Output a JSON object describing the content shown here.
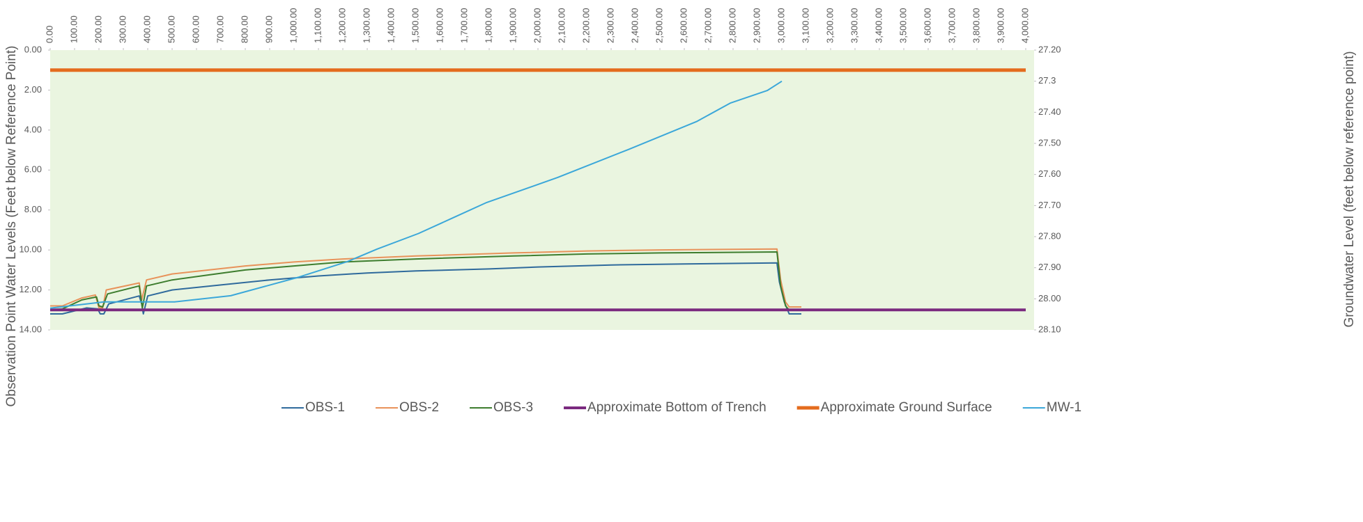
{
  "chart_data": {
    "type": "line",
    "y_reversed": true,
    "y2_reversed": true,
    "xlim": [
      0,
      4000
    ],
    "ylim": [
      0,
      14
    ],
    "y2lim": [
      27.2,
      28.1
    ],
    "ylabel": "Observation Point Water Levels (Feet below Reference Point)",
    "y2label": "Groundwater Level (feet below reference point)",
    "plot_background": "#eaf5e0",
    "legend": "bottom",
    "xticks": [
      {
        "value": 0,
        "label": "0.00"
      },
      {
        "value": 100,
        "label": "100.00"
      },
      {
        "value": 200,
        "label": "200.00"
      },
      {
        "value": 300,
        "label": "300.00"
      },
      {
        "value": 400,
        "label": "400.00"
      },
      {
        "value": 500,
        "label": "500.00"
      },
      {
        "value": 600,
        "label": "600.00"
      },
      {
        "value": 700,
        "label": "700.00"
      },
      {
        "value": 800,
        "label": "800.00"
      },
      {
        "value": 900,
        "label": "900.00"
      },
      {
        "value": 1000,
        "label": "1,000.00"
      },
      {
        "value": 1100,
        "label": "1,100.00"
      },
      {
        "value": 1200,
        "label": "1,200.00"
      },
      {
        "value": 1300,
        "label": "1,300.00"
      },
      {
        "value": 1400,
        "label": "1,400.00"
      },
      {
        "value": 1500,
        "label": "1,500.00"
      },
      {
        "value": 1600,
        "label": "1,600.00"
      },
      {
        "value": 1700,
        "label": "1,700.00"
      },
      {
        "value": 1800,
        "label": "1,800.00"
      },
      {
        "value": 1900,
        "label": "1,900.00"
      },
      {
        "value": 2000,
        "label": "2,000.00"
      },
      {
        "value": 2100,
        "label": "2,100.00"
      },
      {
        "value": 2200,
        "label": "2,200.00"
      },
      {
        "value": 2300,
        "label": "2,300.00"
      },
      {
        "value": 2400,
        "label": "2,400.00"
      },
      {
        "value": 2500,
        "label": "2,500.00"
      },
      {
        "value": 2600,
        "label": "2,600.00"
      },
      {
        "value": 2700,
        "label": "2,700.00"
      },
      {
        "value": 2800,
        "label": "2,800.00"
      },
      {
        "value": 2900,
        "label": "2,900.00"
      },
      {
        "value": 3000,
        "label": "3,000.00"
      },
      {
        "value": 3100,
        "label": "3,100.00"
      },
      {
        "value": 3200,
        "label": "3,200.00"
      },
      {
        "value": 3300,
        "label": "3,300.00"
      },
      {
        "value": 3400,
        "label": "3,400.00"
      },
      {
        "value": 3500,
        "label": "3,500.00"
      },
      {
        "value": 3600,
        "label": "3,600.00"
      },
      {
        "value": 3700,
        "label": "3,700.00"
      },
      {
        "value": 3800,
        "label": "3,800.00"
      },
      {
        "value": 3900,
        "label": "3,900.00"
      },
      {
        "value": 4000,
        "label": "4,000.00"
      }
    ],
    "yticks": [
      {
        "value": 0,
        "label": "0.00"
      },
      {
        "value": 2,
        "label": "2.00"
      },
      {
        "value": 4,
        "label": "4.00"
      },
      {
        "value": 6,
        "label": "6.00"
      },
      {
        "value": 8,
        "label": "8.00"
      },
      {
        "value": 10,
        "label": "10.00"
      },
      {
        "value": 12,
        "label": "12.00"
      },
      {
        "value": 14,
        "label": "14.00"
      }
    ],
    "y2ticks": [
      {
        "value": 27.2,
        "label": "27.20"
      },
      27.3,
      {
        "value": 27.4,
        "label": "27.40"
      },
      {
        "value": 27.5,
        "label": "27.50"
      },
      {
        "value": 27.6,
        "label": "27.60"
      },
      {
        "value": 27.7,
        "label": "27.70"
      },
      {
        "value": 27.8,
        "label": "27.80"
      },
      {
        "value": 27.9,
        "label": "27.90"
      },
      {
        "value": 28.0,
        "label": "28.00"
      },
      {
        "value": 28.1,
        "label": "28.10"
      }
    ],
    "series": [
      {
        "name": "OBS-1",
        "color": "#2f6a9c",
        "width": 2,
        "x": [
          0,
          50,
          150,
          195,
          205,
          220,
          240,
          365,
          375,
          382,
          400,
          500,
          700,
          900,
          1100,
          1300,
          1500,
          1800,
          2000,
          2300,
          2600,
          2980,
          2990,
          3010,
          3030,
          3080
        ],
        "values": [
          13.2,
          13.2,
          12.9,
          12.95,
          13.2,
          13.2,
          12.7,
          12.3,
          12.7,
          13.2,
          12.3,
          12.0,
          11.75,
          11.5,
          11.3,
          11.15,
          11.05,
          10.95,
          10.85,
          10.75,
          10.7,
          10.65,
          11.6,
          12.6,
          13.2,
          13.2
        ]
      },
      {
        "name": "OBS-2",
        "color": "#e8925a",
        "width": 2,
        "x": [
          0,
          50,
          130,
          185,
          200,
          215,
          230,
          365,
          375,
          395,
          500,
          650,
          800,
          1000,
          1200,
          1500,
          1900,
          2200,
          2500,
          2980,
          2995,
          3015,
          3030,
          3080
        ],
        "values": [
          12.8,
          12.8,
          12.4,
          12.25,
          12.9,
          12.9,
          12.0,
          11.65,
          12.5,
          11.5,
          11.2,
          11.0,
          10.8,
          10.6,
          10.45,
          10.3,
          10.15,
          10.05,
          10.0,
          9.95,
          11.5,
          12.6,
          12.85,
          12.85
        ]
      },
      {
        "name": "OBS-3",
        "color": "#3d7d2e",
        "width": 2,
        "x": [
          0,
          50,
          130,
          190,
          200,
          215,
          235,
          365,
          378,
          395,
          500,
          650,
          800,
          1000,
          1200,
          1500,
          1900,
          2200,
          2500,
          2980,
          2995,
          3015,
          3030
        ],
        "values": [
          13.0,
          12.95,
          12.5,
          12.35,
          12.8,
          12.85,
          12.2,
          11.8,
          12.9,
          11.8,
          11.5,
          11.25,
          11.0,
          10.8,
          10.6,
          10.45,
          10.3,
          10.2,
          10.15,
          10.1,
          11.8,
          12.8,
          13.0
        ]
      },
      {
        "name": "Approximate Bottom of Trench",
        "color": "#7b2a7f",
        "width": 4,
        "x": [
          0,
          4000
        ],
        "values": [
          13,
          13
        ]
      },
      {
        "name": "Approximate Ground Surface",
        "color": "#e46c1e",
        "width": 5,
        "x": [
          0,
          4000
        ],
        "values": [
          1,
          1
        ]
      },
      {
        "name": "MW-1",
        "color": "#3ba7d9",
        "width": 2,
        "axis": "y2",
        "x": [
          0,
          220,
          510,
          740,
          1020,
          1220,
          1340,
          1510,
          1650,
          1790,
          2080,
          2370,
          2650,
          2790,
          2940,
          3000
        ],
        "values": [
          28.03,
          28.01,
          28.01,
          27.99,
          27.93,
          27.88,
          27.84,
          27.79,
          27.74,
          27.69,
          27.61,
          27.52,
          27.43,
          27.37,
          27.33,
          27.3
        ]
      }
    ]
  }
}
